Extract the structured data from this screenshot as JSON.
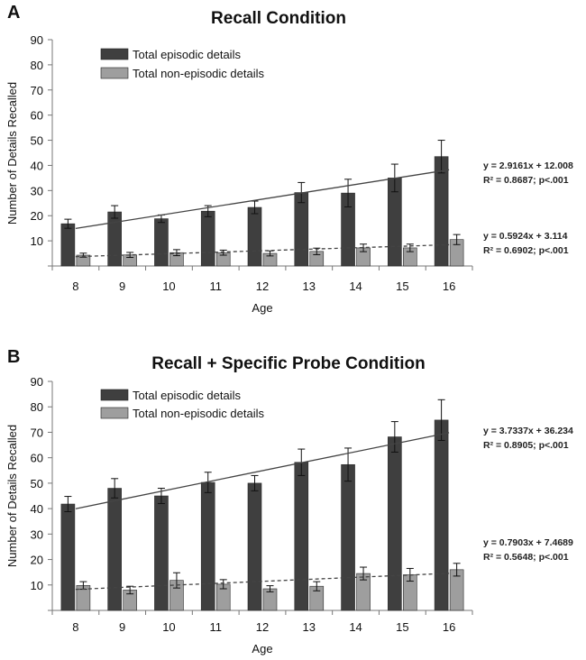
{
  "colors": {
    "episodic": "#3f3f3f",
    "non_episodic": "#9e9e9e",
    "axis": "#777777",
    "trend": "#444444"
  },
  "chart_data": [
    {
      "panel": "A",
      "type": "bar",
      "title": "Recall Condition",
      "xlabel": "Age",
      "ylabel": "Number of Details Recalled",
      "categories": [
        "8",
        "9",
        "10",
        "11",
        "12",
        "13",
        "14",
        "15",
        "16"
      ],
      "ylim": [
        0,
        90
      ],
      "yticks": [
        "10",
        "20",
        "30",
        "40",
        "50",
        "60",
        "70",
        "80",
        "90"
      ],
      "series": [
        {
          "name": "Total episodic details",
          "values": [
            16.8,
            21.5,
            18.8,
            21.8,
            23.3,
            29.2,
            29.0,
            35.0,
            43.5
          ],
          "errors": [
            1.8,
            2.5,
            1.5,
            2.2,
            2.5,
            4.0,
            5.5,
            5.5,
            6.5
          ]
        },
        {
          "name": "Total non-episodic details",
          "values": [
            4.3,
            4.4,
            5.3,
            5.3,
            5.0,
            5.8,
            7.2,
            7.2,
            10.5
          ],
          "errors": [
            0.8,
            1.0,
            1.2,
            1.0,
            1.0,
            1.3,
            1.5,
            1.5,
            2.0
          ]
        }
      ],
      "trendlines": [
        {
          "series": "Total episodic details",
          "slope": 2.9161,
          "intercept": 12.008,
          "style": "solid",
          "label1": "y = 2.9161x + 12.008",
          "label2": "R² = 0.8687; p<.001"
        },
        {
          "series": "Total non-episodic details",
          "slope": 0.5924,
          "intercept": 3.114,
          "style": "dashed",
          "label1": "y = 0.5924x + 3.114",
          "label2": "R² = 0.6902; p<.001"
        }
      ]
    },
    {
      "panel": "B",
      "type": "bar",
      "title": "Recall + Specific Probe Condition",
      "xlabel": "Age",
      "ylabel": "Number of Details Recalled",
      "categories": [
        "8",
        "9",
        "10",
        "11",
        "12",
        "13",
        "14",
        "15",
        "16"
      ],
      "ylim": [
        0,
        90
      ],
      "yticks": [
        "10",
        "20",
        "30",
        "40",
        "50",
        "60",
        "70",
        "80",
        "90"
      ],
      "series": [
        {
          "name": "Total episodic details",
          "values": [
            41.8,
            48.0,
            45.0,
            50.3,
            50.0,
            58.2,
            57.3,
            68.2,
            74.8
          ],
          "errors": [
            3.0,
            3.8,
            3.0,
            4.0,
            3.0,
            5.2,
            6.5,
            6.0,
            8.0
          ]
        },
        {
          "name": "Total non-episodic details",
          "values": [
            9.8,
            8.0,
            11.8,
            10.3,
            8.5,
            9.5,
            14.5,
            14.0,
            16.0
          ],
          "errors": [
            1.5,
            1.5,
            3.0,
            1.8,
            1.2,
            1.8,
            2.5,
            2.5,
            2.5
          ]
        }
      ],
      "trendlines": [
        {
          "series": "Total episodic details",
          "slope": 3.7337,
          "intercept": 36.234,
          "style": "solid",
          "label1": "y = 3.7337x + 36.234",
          "label2": "R² = 0.8905; p<.001"
        },
        {
          "series": "Total non-episodic details",
          "slope": 0.7903,
          "intercept": 7.4689,
          "style": "dashed",
          "label1": "y = 0.7903x + 7.4689",
          "label2": "R² = 0.5648; p<.001"
        }
      ]
    }
  ]
}
